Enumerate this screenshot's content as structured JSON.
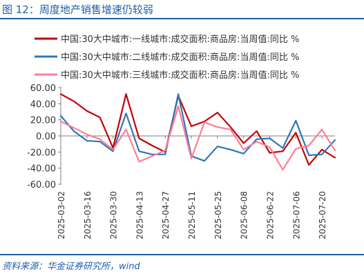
{
  "header": {
    "title": "图 12：周度地产销售增速仍较弱"
  },
  "footer": {
    "source": "资料来源：华金证券研究所，wind"
  },
  "colors": {
    "accent": "#1f5fa8",
    "axis": "#7f7f7f"
  },
  "chart_data": {
    "type": "line",
    "title": "",
    "xlabel": "",
    "ylabel": "",
    "ylim": [
      -60,
      60
    ],
    "yticks": [
      "60.00",
      "40.00",
      "20.00",
      "0.00",
      "-20.00",
      "-40.00",
      "-60.00"
    ],
    "yticks_values": [
      60,
      40,
      20,
      0,
      -20,
      -40,
      -60
    ],
    "x": [
      "2025-03-02",
      "2025-03-09",
      "2025-03-16",
      "2025-03-23",
      "2025-03-30",
      "2025-04-06",
      "2025-04-13",
      "2025-04-20",
      "2025-04-27",
      "2025-05-04",
      "2025-05-11",
      "2025-05-18",
      "2025-05-25",
      "2025-06-01",
      "2025-06-08",
      "2025-06-15",
      "2025-06-22",
      "2025-06-29",
      "2025-07-06",
      "2025-07-13",
      "2025-07-20",
      "2025-07-27"
    ],
    "xticks": [
      "2025-03-02",
      "2025-03-16",
      "2025-03-30",
      "2025-04-13",
      "2025-04-27",
      "2025-05-11",
      "2025-05-25",
      "2025-06-08",
      "2025-06-22",
      "2025-07-06",
      "2025-07-20"
    ],
    "grid": false,
    "legend_position": "top",
    "series": [
      {
        "name": "中国:30大中城市:成交面积:商品房:当周值:同比 %",
        "legend_label": "中国:30大中城市:一线城市:成交面积:商品房:当周值:同比 %",
        "color": "#c00000",
        "values": [
          52,
          43,
          31,
          23,
          -15,
          52,
          -3,
          -12,
          -20,
          50,
          12,
          18,
          29,
          11,
          -9,
          6,
          -21,
          -19,
          4,
          -36,
          -17,
          -27
        ]
      },
      {
        "name": "中国:30大中城市:成交面积:商品房:当周值:同比 %",
        "legend_label": "中国:30大中城市:二线城市:成交面积:商品房:当周值:同比 %",
        "color": "#2e75b6",
        "values": [
          25,
          6,
          -6,
          -7,
          -19,
          28,
          -19,
          -23,
          -23,
          52,
          -25,
          -31,
          -13,
          -17,
          -22,
          -4,
          -3,
          -15,
          19,
          -24,
          -23,
          -5
        ]
      },
      {
        "name": "中国:30大中城市:成交面积:商品房:当周值:同比 %",
        "legend_label": "中国:30大中城市:三线城市:成交面积:商品房:当周值:同比 %",
        "color": "#ff7c95",
        "values": [
          18,
          10,
          2,
          -4,
          -17,
          8,
          -32,
          -25,
          -18,
          37,
          -28,
          17,
          11,
          8,
          -17,
          -7,
          -14,
          -42,
          -16,
          -12,
          8,
          -18
        ]
      }
    ]
  }
}
